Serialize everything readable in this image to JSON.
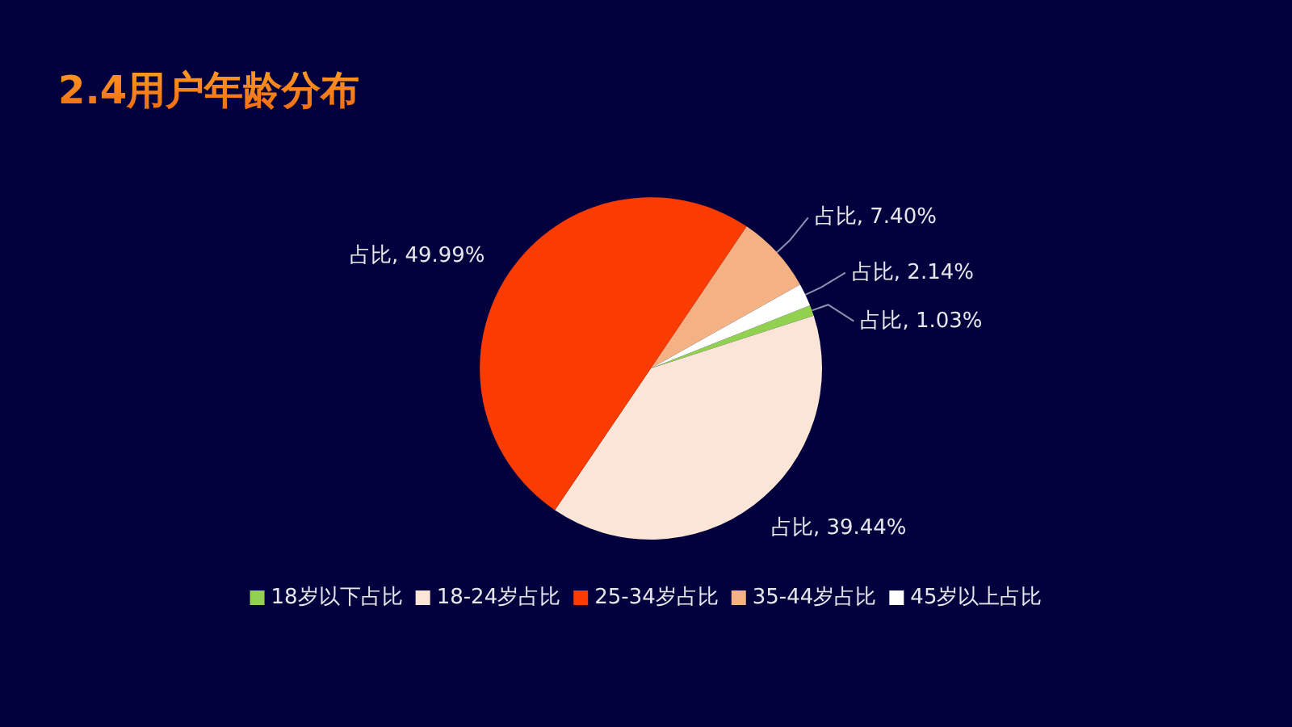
{
  "chart_data": {
    "type": "pie",
    "title": "2.4用户年龄分布",
    "categories": [
      "18岁以下占比",
      "18-24岁占比",
      "25-34岁占比",
      "35-44岁占比",
      "45岁以上占比"
    ],
    "values": [
      1.03,
      39.44,
      49.99,
      7.4,
      2.14
    ],
    "colors": [
      "#92d050",
      "#fbe5d6",
      "#fa3c00",
      "#f4b183",
      "#ffffff"
    ],
    "value_labels": [
      "占比, 1.03%",
      "占比, 39.44%",
      "占比, 49.99%",
      "占比, 7.40%",
      "占比, 2.14%"
    ],
    "legend": "bottom"
  }
}
